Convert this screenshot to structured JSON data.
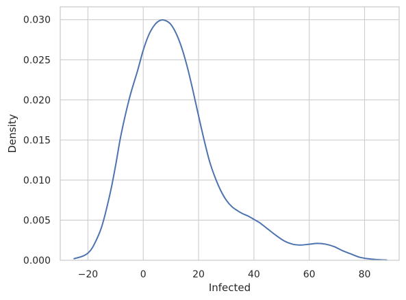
{
  "chart_data": {
    "type": "line",
    "title": "",
    "xlabel": "Infected",
    "ylabel": "Density",
    "xlim": [
      -30,
      92.5
    ],
    "ylim": [
      0,
      0.0316
    ],
    "grid": true,
    "x_ticks": [
      -20,
      0,
      20,
      40,
      60,
      80
    ],
    "x_tick_labels": [
      "−20",
      "0",
      "20",
      "40",
      "60",
      "80"
    ],
    "y_ticks": [
      0,
      0.005,
      0.01,
      0.015,
      0.02,
      0.025,
      0.03
    ],
    "y_tick_labels": [
      "0.000",
      "0.005",
      "0.010",
      "0.015",
      "0.020",
      "0.025",
      "0.030"
    ],
    "series": [
      {
        "color": "#4c72b0",
        "points": [
          [
            -25,
            0.0002
          ],
          [
            -22,
            0.0005
          ],
          [
            -20,
            0.0009
          ],
          [
            -18,
            0.0018
          ],
          [
            -15,
            0.0042
          ],
          [
            -12,
            0.0083
          ],
          [
            -10,
            0.0118
          ],
          [
            -8,
            0.0157
          ],
          [
            -5,
            0.0202
          ],
          [
            -2,
            0.0237
          ],
          [
            0,
            0.0262
          ],
          [
            2,
            0.0281
          ],
          [
            4,
            0.0293
          ],
          [
            6,
            0.0299
          ],
          [
            8,
            0.0299
          ],
          [
            10,
            0.0294
          ],
          [
            12,
            0.0282
          ],
          [
            14,
            0.0264
          ],
          [
            16,
            0.024
          ],
          [
            18,
            0.0211
          ],
          [
            20,
            0.018
          ],
          [
            22,
            0.015
          ],
          [
            24,
            0.0123
          ],
          [
            26,
            0.0103
          ],
          [
            28,
            0.0087
          ],
          [
            30,
            0.0075
          ],
          [
            32,
            0.0067
          ],
          [
            34,
            0.0062
          ],
          [
            36,
            0.0058
          ],
          [
            38,
            0.0055
          ],
          [
            40,
            0.0051
          ],
          [
            42,
            0.0047
          ],
          [
            45,
            0.0039
          ],
          [
            48,
            0.0031
          ],
          [
            51,
            0.0024
          ],
          [
            54,
            0.002
          ],
          [
            57,
            0.0019
          ],
          [
            60,
            0.002
          ],
          [
            63,
            0.0021
          ],
          [
            66,
            0.002
          ],
          [
            69,
            0.0017
          ],
          [
            72,
            0.0012
          ],
          [
            75,
            0.0008
          ],
          [
            78,
            0.0004
          ],
          [
            81,
            0.0002
          ],
          [
            84,
            0.0001
          ],
          [
            88,
            3e-05
          ]
        ]
      }
    ]
  }
}
